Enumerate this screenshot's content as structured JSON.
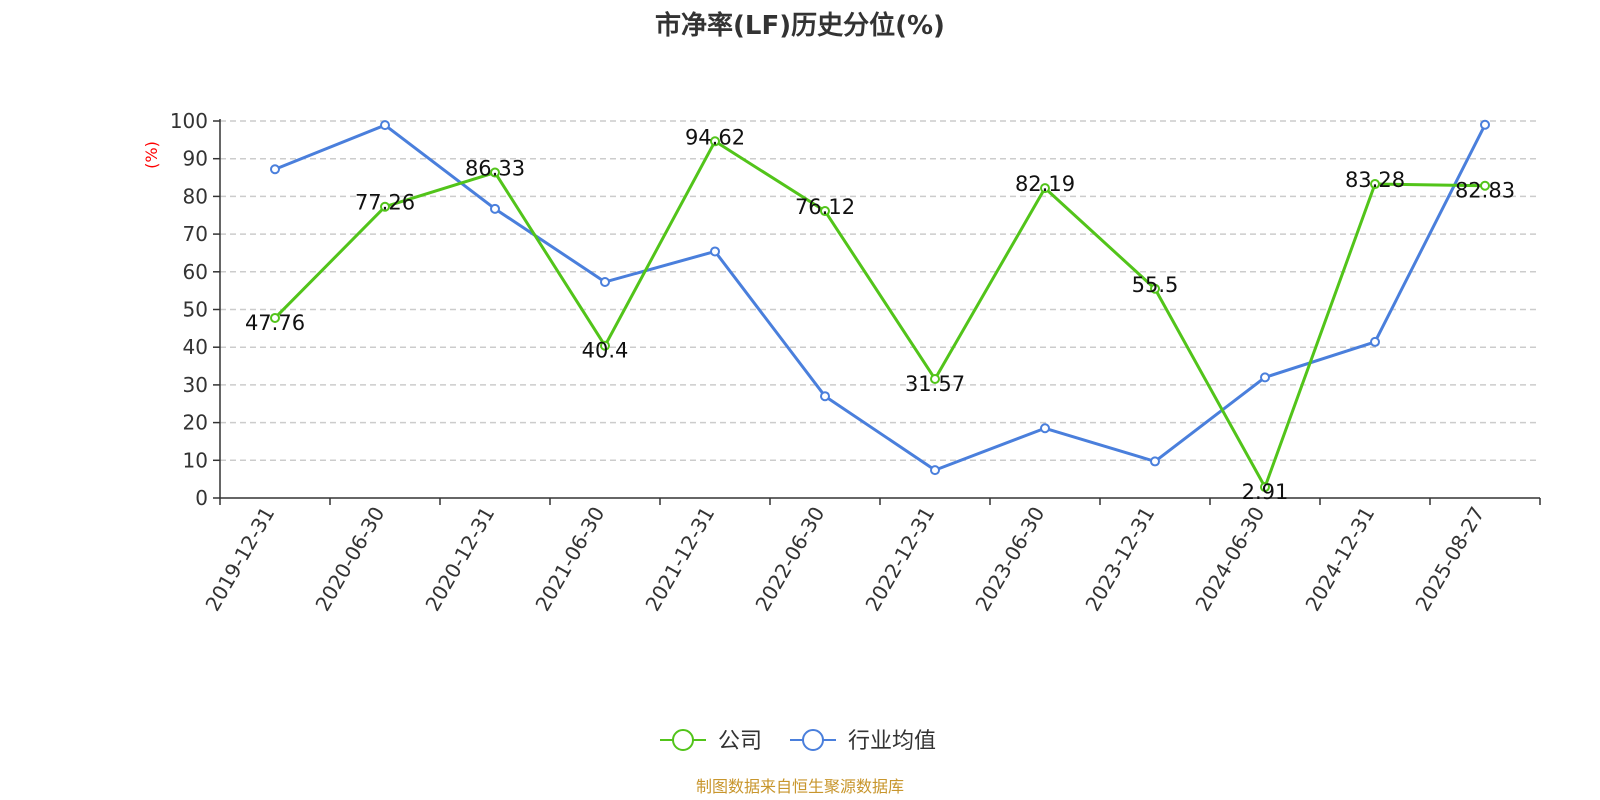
{
  "chart_data": {
    "type": "line",
    "title": "市净率(LF)历史分位(%)",
    "ylabel": "(%)",
    "ylim": [
      0,
      100
    ],
    "yticks": [
      "0",
      "10",
      "20",
      "30",
      "40",
      "50",
      "60",
      "70",
      "80",
      "90",
      "100"
    ],
    "categories": [
      "2019-12-31",
      "2020-06-30",
      "2020-12-31",
      "2021-06-30",
      "2021-12-31",
      "2022-06-30",
      "2022-12-31",
      "2023-06-30",
      "2023-12-31",
      "2024-06-30",
      "2024-12-31",
      "2025-08-27"
    ],
    "series": [
      {
        "name": "公司",
        "color": "#52c41a",
        "values": [
          47.76,
          77.26,
          86.33,
          40.4,
          94.62,
          76.12,
          31.57,
          82.19,
          55.5,
          2.91,
          83.28,
          82.83
        ],
        "labels": [
          "47.76",
          "77.26",
          "86.33",
          "40.4",
          "94.62",
          "76.12",
          "31.57",
          "82.19",
          "55.5",
          "2.91",
          "83.28",
          "82.83"
        ]
      },
      {
        "name": "行业均值",
        "color": "#4a7fdc",
        "values": [
          87.2,
          98.9,
          76.7,
          57.3,
          65.4,
          27.0,
          7.4,
          18.5,
          9.7,
          32.0,
          41.4,
          99.0
        ]
      }
    ],
    "grid": true,
    "legend": "bottom-center",
    "colors": {
      "axis": "#333333",
      "grid": "#cccccc",
      "unit": "#ff0000",
      "source": "#c8962d"
    }
  },
  "source_note": "制图数据来自恒生聚源数据库"
}
